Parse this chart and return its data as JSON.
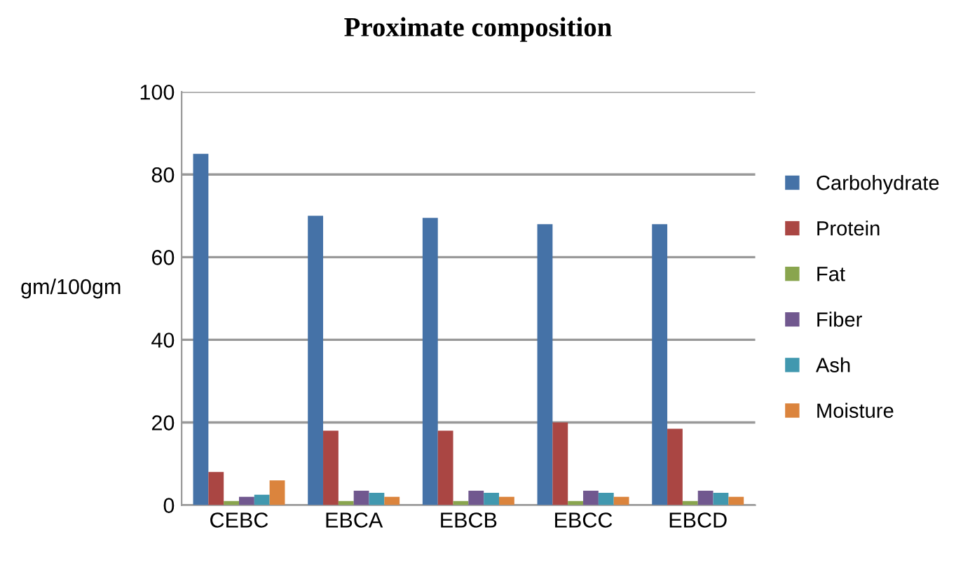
{
  "chart_data": {
    "type": "bar",
    "title": "Proximate composition",
    "ylabel": "gm/100gm",
    "categories": [
      "CEBC",
      "EBCA",
      "EBCB",
      "EBCC",
      "EBCD"
    ],
    "series": [
      {
        "name": "Carbohydrate",
        "color": "#4572a7",
        "values": [
          85,
          70,
          69.5,
          68,
          68
        ]
      },
      {
        "name": "Protein",
        "color": "#aa4643",
        "values": [
          8,
          18,
          18,
          20,
          18.5
        ]
      },
      {
        "name": "Fat",
        "color": "#89a54e",
        "values": [
          1,
          1,
          1,
          1,
          1
        ]
      },
      {
        "name": "Fiber",
        "color": "#71588f",
        "values": [
          2,
          3.5,
          3.5,
          3.5,
          3.5
        ]
      },
      {
        "name": "Ash",
        "color": "#4198af",
        "values": [
          2.5,
          3,
          3,
          3,
          3
        ]
      },
      {
        "name": "Moisture",
        "color": "#db843d",
        "values": [
          6,
          2,
          2,
          2,
          2
        ]
      }
    ],
    "ylim": [
      0,
      100
    ],
    "yticks": [
      0,
      20,
      40,
      60,
      80,
      100
    ],
    "grid": "y",
    "legend": "right"
  }
}
